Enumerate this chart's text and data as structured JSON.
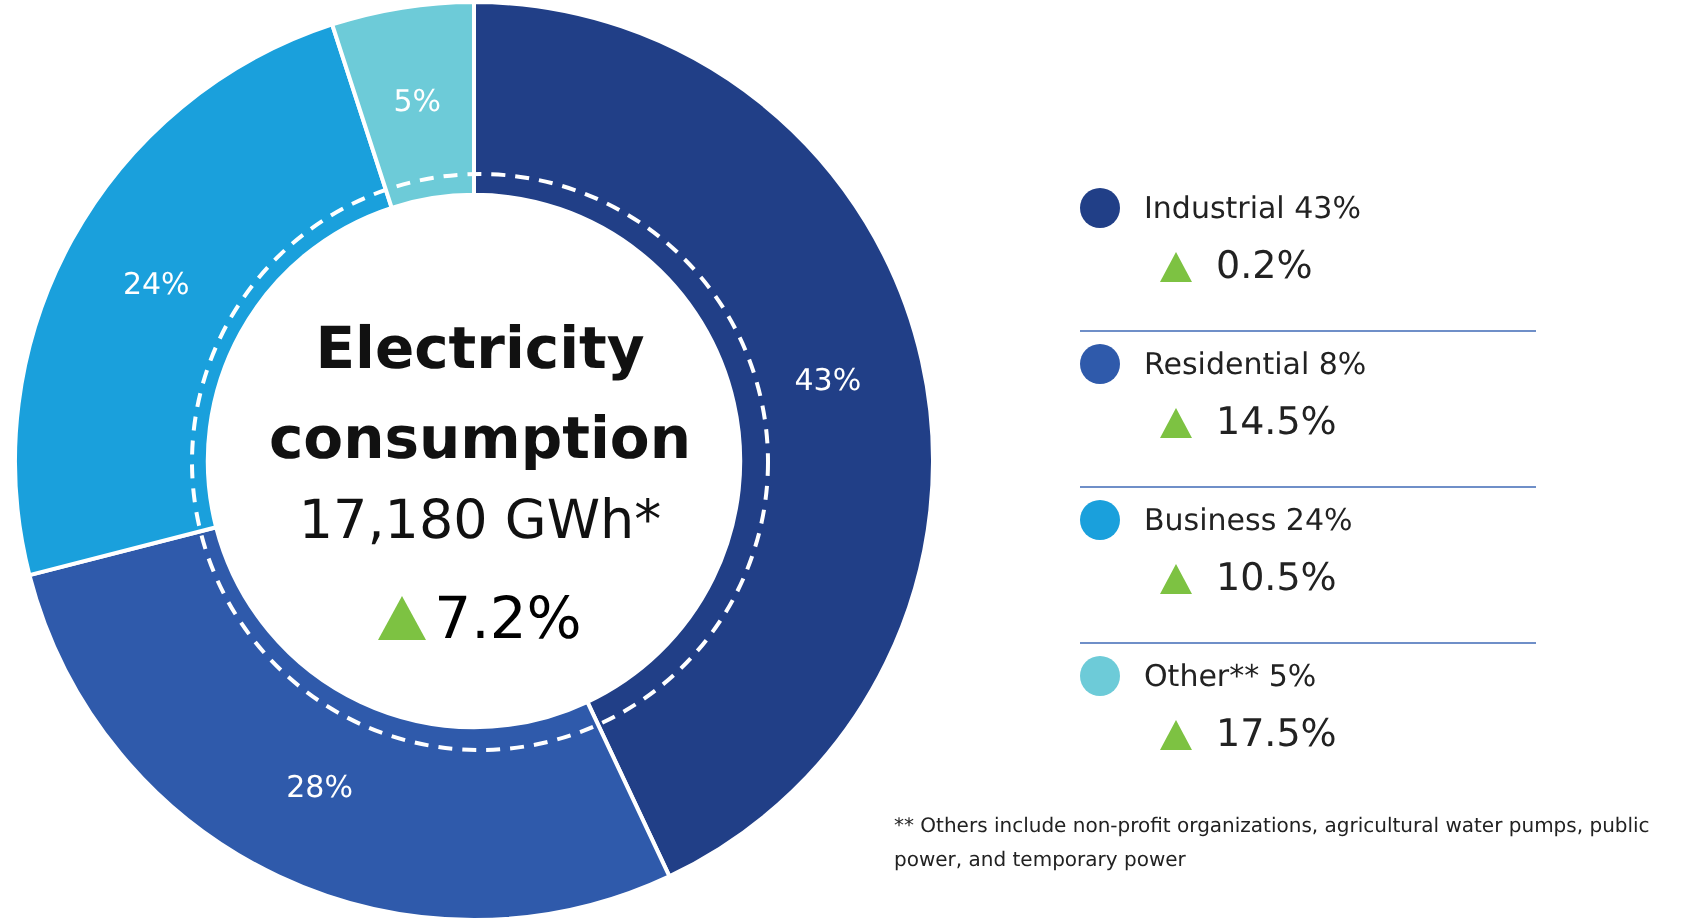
{
  "chart_data": {
    "type": "donut",
    "title": "Electricity consumption",
    "subtitle": "17,180 GWh*",
    "categories": [
      "Industrial 43%",
      "Residential 8%",
      "Business 24%",
      "Other** 5%"
    ],
    "values": [
      43,
      28,
      24,
      5
    ],
    "colors": [
      "#213f87",
      "#2f5aab",
      "#1aa0dc",
      "#6dcbd8"
    ],
    "value_labels": [
      "43%",
      "28%",
      "24%",
      "5%"
    ],
    "legend": "right",
    "annotations": [
      "7.2%",
      "0.2%",
      "14.5%",
      "10.5%",
      "17.5%",
      "** Others include non-profit organizations, agricultural water pumps, public power, and temporary power"
    ]
  }
}
